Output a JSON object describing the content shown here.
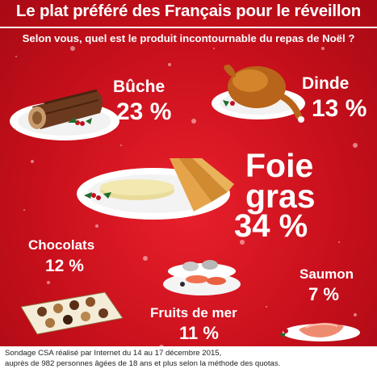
{
  "header": {
    "title": "Le plat préféré des Français pour le réveillon",
    "subtitle": "Selon vous, quel est le produit incontournable du repas de Noël ?"
  },
  "footer": {
    "line1": "Sondage CSA réalisé par Internet du 14 au 17 décembre 2015,",
    "line2": "auprès de 982 personnes âgées de 18 ans et plus selon la méthode des quotas."
  },
  "colors": {
    "background": "#c8101c",
    "text": "#ffffff",
    "footer_background": "#ffffff"
  },
  "chart_data": {
    "type": "table",
    "title": "Le plat préféré des Français pour le réveillon",
    "subtitle": "Selon vous, quel est le produit incontournable du repas de Noël ?",
    "categories": [
      "Bûche",
      "Dinde",
      "Foie gras",
      "Chocolats",
      "Fruits de mer",
      "Saumon"
    ],
    "labels": [
      "Bûche",
      "Dinde",
      "Foie\ngras",
      "Chocolats",
      "Fruits de mer",
      "Saumon"
    ],
    "values": [
      23,
      13,
      34,
      12,
      11,
      7
    ],
    "value_labels": [
      "23 %",
      "13 %",
      "34 %",
      "12 %",
      "11 %",
      "7 %"
    ],
    "unit": "%"
  }
}
